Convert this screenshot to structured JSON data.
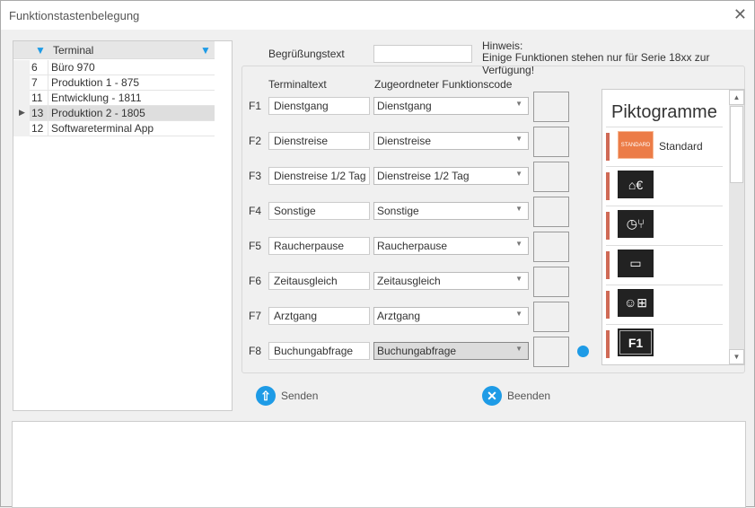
{
  "window": {
    "title": "Funktionstastenbelegung"
  },
  "grid": {
    "header": "Terminal",
    "rows": [
      {
        "id": "6",
        "name": "Büro 970",
        "selected": false
      },
      {
        "id": "7",
        "name": "Produktion 1 - 875",
        "selected": false
      },
      {
        "id": "11",
        "name": "Entwicklung - 1811",
        "selected": false
      },
      {
        "id": "13",
        "name": "Produktion 2 - 1805",
        "selected": true
      },
      {
        "id": "12",
        "name": "Softwareterminal App",
        "selected": false
      }
    ]
  },
  "greeting": {
    "label": "Begrüßungstext",
    "value": ""
  },
  "hint": {
    "line1": "Hinweis:",
    "line2": "Einige Funktionen stehen nur für Serie 18xx zur Verfügung!"
  },
  "columns": {
    "terminaltext": "Terminaltext",
    "code": "Zugeordneter Funktionscode"
  },
  "keys": [
    {
      "key": "F1",
      "text": "Dienstgang",
      "code": "Dienstgang"
    },
    {
      "key": "F2",
      "text": "Dienstreise",
      "code": "Dienstreise"
    },
    {
      "key": "F3",
      "text": "Dienstreise 1/2 Tag",
      "code": "Dienstreise 1/2 Tag"
    },
    {
      "key": "F4",
      "text": "Sonstige",
      "code": "Sonstige"
    },
    {
      "key": "F5",
      "text": "Raucherpause",
      "code": "Raucherpause"
    },
    {
      "key": "F6",
      "text": "Zeitausgleich",
      "code": "Zeitausgleich"
    },
    {
      "key": "F7",
      "text": "Arztgang",
      "code": "Arztgang"
    },
    {
      "key": "F8",
      "text": "Buchungabfrage",
      "code": "Buchungabfrage"
    }
  ],
  "pictograms": {
    "title": "Piktogramme",
    "items": [
      {
        "icon": "standard",
        "label": "Standard",
        "badge": "STANDARD"
      },
      {
        "icon": "building-euro",
        "label": ""
      },
      {
        "icon": "clock-coffee-cutlery",
        "label": ""
      },
      {
        "icon": "briefcase",
        "label": ""
      },
      {
        "icon": "person-plus",
        "label": ""
      },
      {
        "icon": "f1-key",
        "label": "",
        "badge": "F1"
      }
    ]
  },
  "buttons": {
    "send": "Senden",
    "exit": "Beenden"
  },
  "colors": {
    "accent": "#1e9be6",
    "picto_bar": "#d06a56",
    "standard": "#ec7c47"
  }
}
